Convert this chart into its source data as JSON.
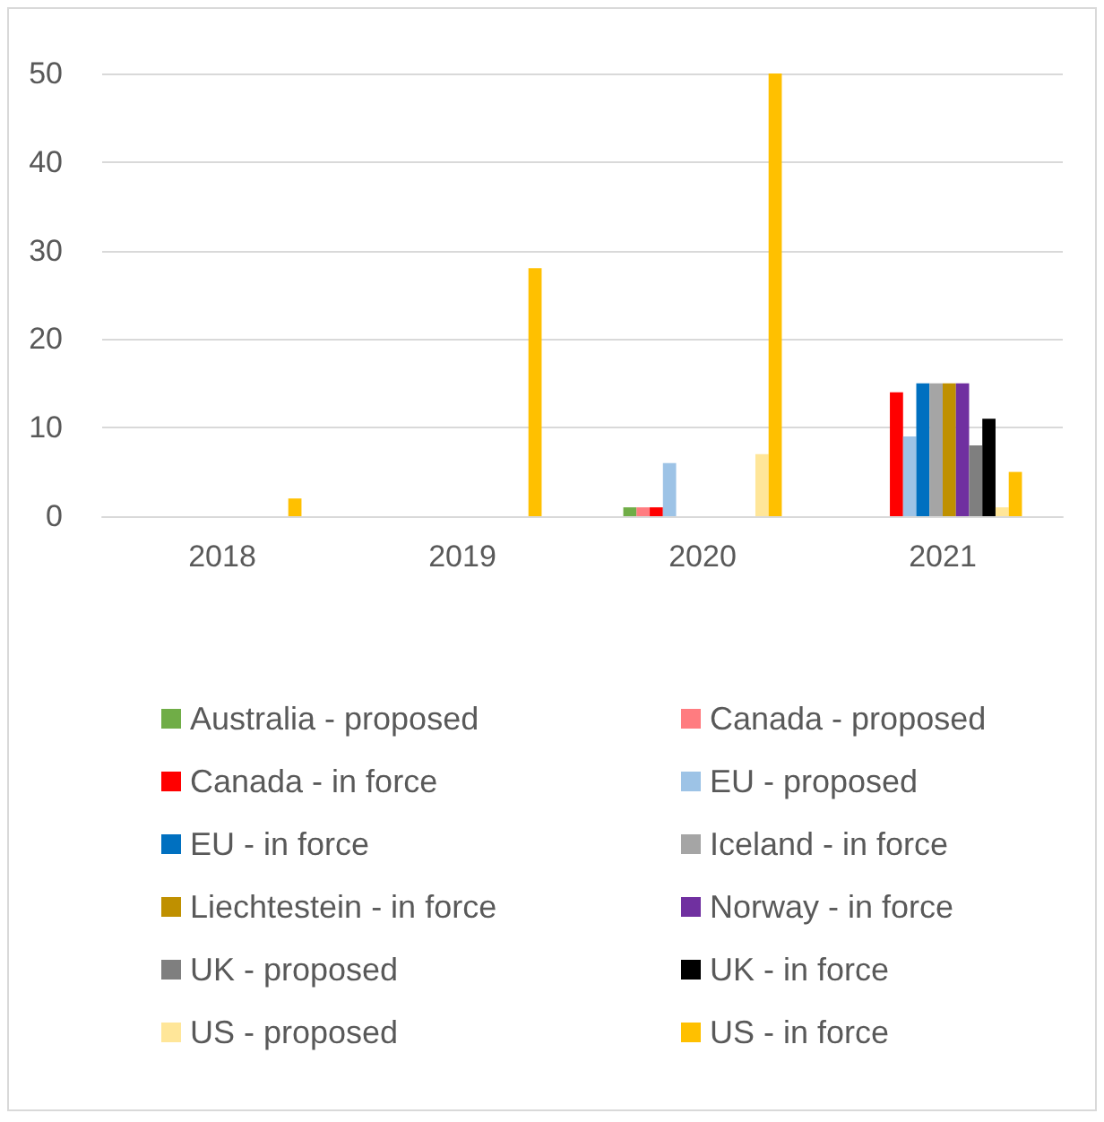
{
  "chart_data": {
    "type": "bar",
    "categories": [
      "2018",
      "2019",
      "2020",
      "2021"
    ],
    "series": [
      {
        "name": "Australia - proposed",
        "color": "#70ad47",
        "values": [
          null,
          null,
          1,
          null
        ]
      },
      {
        "name": "Canada - proposed",
        "color": "#ff7c80",
        "values": [
          null,
          null,
          1,
          null
        ]
      },
      {
        "name": "Canada - in force",
        "color": "#ff0000",
        "values": [
          null,
          null,
          1,
          14
        ]
      },
      {
        "name": "EU - proposed",
        "color": "#9dc3e6",
        "values": [
          null,
          null,
          6,
          9
        ]
      },
      {
        "name": "EU - in force",
        "color": "#0070c0",
        "values": [
          null,
          null,
          null,
          15
        ]
      },
      {
        "name": "Iceland - in force",
        "color": "#a5a5a5",
        "values": [
          null,
          null,
          null,
          15
        ]
      },
      {
        "name": "Liechtestein - in force",
        "color": "#bf9000",
        "values": [
          null,
          null,
          null,
          15
        ]
      },
      {
        "name": "Norway - in force",
        "color": "#7030a0",
        "values": [
          null,
          null,
          null,
          15
        ]
      },
      {
        "name": "UK - proposed",
        "color": "#7f7f7f",
        "values": [
          null,
          null,
          null,
          8
        ]
      },
      {
        "name": "UK - in force",
        "color": "#000000",
        "values": [
          null,
          null,
          null,
          11
        ]
      },
      {
        "name": "US - proposed",
        "color": "#ffe699",
        "values": [
          null,
          null,
          7,
          1
        ]
      },
      {
        "name": "US - in force",
        "color": "#ffc000",
        "values": [
          2,
          28,
          50,
          5
        ]
      }
    ],
    "ylim": [
      0,
      50
    ],
    "yticks": [
      0,
      10,
      20,
      30,
      40,
      50
    ],
    "grid": "y",
    "legend": "bottom"
  }
}
